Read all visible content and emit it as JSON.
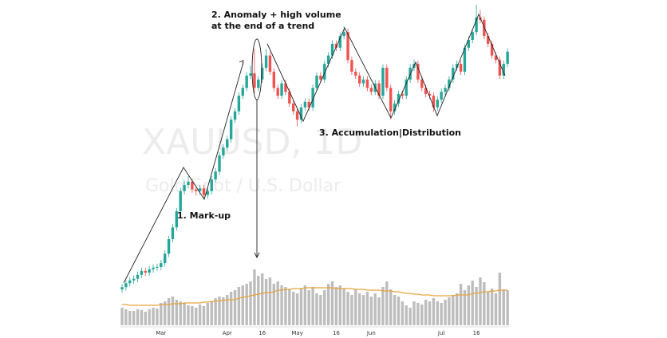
{
  "chart_data": {
    "type": "candlestick",
    "title": "XAUUSD, 1D",
    "subtitle": "Gold Spot / U.S. Dollar",
    "annotations": [
      "1. Mark-up",
      [
        "2. Anomaly + high volume",
        "at the end of a trend"
      ],
      "3. Accumulation|Distribution"
    ],
    "categories": [
      null,
      null,
      null,
      null,
      null,
      null,
      null,
      null,
      null,
      null,
      "Mar",
      null,
      null,
      null,
      null,
      null,
      null,
      null,
      null,
      null,
      null,
      null,
      null,
      null,
      null,
      null,
      null,
      "Apr",
      null,
      null,
      null,
      null,
      null,
      null,
      null,
      null,
      "16",
      null,
      null,
      null,
      null,
      null,
      null,
      null,
      null,
      "May",
      null,
      null,
      null,
      null,
      null,
      null,
      null,
      null,
      null,
      "16",
      null,
      null,
      null,
      null,
      null,
      null,
      null,
      null,
      "Jun",
      null,
      null,
      null,
      null,
      null,
      null,
      null,
      null,
      null,
      null,
      null,
      null,
      null,
      null,
      null,
      null,
      null,
      "Jul",
      null,
      null,
      null,
      null,
      null,
      null,
      null,
      null,
      "16",
      null,
      null,
      null,
      null,
      null,
      null,
      null,
      null
    ],
    "open": [
      2000,
      2004,
      2011,
      2016,
      2019,
      2026,
      2033,
      2030,
      2036,
      2039,
      2040,
      2047,
      2064,
      2090,
      2111,
      2140,
      2176,
      2187,
      2193,
      2179,
      2176,
      2181,
      2169,
      2176,
      2197,
      2211,
      2240,
      2254,
      2269,
      2304,
      2319,
      2347,
      2361,
      2383,
      2387,
      2361,
      2376,
      2397,
      2419,
      2390,
      2361,
      2347,
      2369,
      2354,
      2333,
      2319,
      2304,
      2326,
      2336,
      2326,
      2361,
      2383,
      2376,
      2404,
      2419,
      2440,
      2433,
      2454,
      2461,
      2411,
      2390,
      2383,
      2369,
      2376,
      2361,
      2354,
      2369,
      2347,
      2397,
      2361,
      2319,
      2333,
      2350,
      2347,
      2376,
      2397,
      2404,
      2376,
      2361,
      2350,
      2347,
      2326,
      2340,
      2354,
      2361,
      2376,
      2397,
      2404,
      2390,
      2433,
      2447,
      2461,
      2487,
      2483,
      2454,
      2440,
      2419,
      2411,
      2383,
      2404
    ],
    "high": [
      2010,
      2017,
      2022,
      2025,
      2032,
      2039,
      2039,
      2042,
      2045,
      2046,
      2053,
      2070,
      2096,
      2117,
      2146,
      2182,
      2195,
      2203,
      2199,
      2185,
      2187,
      2187,
      2182,
      2203,
      2217,
      2246,
      2260,
      2275,
      2310,
      2325,
      2353,
      2367,
      2389,
      2400,
      2431,
      2382,
      2405,
      2431,
      2425,
      2396,
      2367,
      2375,
      2375,
      2360,
      2339,
      2325,
      2332,
      2342,
      2342,
      2367,
      2389,
      2389,
      2410,
      2425,
      2446,
      2446,
      2460,
      2471,
      2467,
      2417,
      2396,
      2389,
      2382,
      2382,
      2367,
      2375,
      2375,
      2403,
      2403,
      2367,
      2339,
      2356,
      2356,
      2382,
      2403,
      2412,
      2410,
      2382,
      2367,
      2356,
      2353,
      2346,
      2360,
      2367,
      2382,
      2403,
      2410,
      2410,
      2439,
      2453,
      2467,
      2510,
      2500,
      2489,
      2460,
      2446,
      2425,
      2417,
      2410,
      2432
    ],
    "low": [
      1994,
      1998,
      2005,
      2010,
      2013,
      2020,
      2024,
      2024,
      2030,
      2033,
      2034,
      2041,
      2058,
      2084,
      2105,
      2134,
      2170,
      2181,
      2173,
      2168,
      2170,
      2163,
      2163,
      2170,
      2191,
      2205,
      2234,
      2248,
      2263,
      2298,
      2313,
      2341,
      2355,
      2377,
      2352,
      2355,
      2370,
      2391,
      2384,
      2355,
      2341,
      2341,
      2348,
      2327,
      2313,
      2292,
      2298,
      2320,
      2320,
      2320,
      2355,
      2370,
      2370,
      2398,
      2413,
      2427,
      2427,
      2448,
      2405,
      2384,
      2377,
      2363,
      2363,
      2355,
      2348,
      2348,
      2341,
      2341,
      2355,
      2305,
      2313,
      2327,
      2341,
      2341,
      2370,
      2391,
      2370,
      2355,
      2344,
      2341,
      2318,
      2320,
      2334,
      2348,
      2355,
      2370,
      2391,
      2384,
      2384,
      2427,
      2441,
      2455,
      2477,
      2448,
      2434,
      2413,
      2405,
      2377,
      2377,
      2398
    ],
    "close": [
      2004,
      2011,
      2016,
      2019,
      2026,
      2033,
      2030,
      2036,
      2039,
      2040,
      2047,
      2064,
      2090,
      2111,
      2140,
      2176,
      2187,
      2193,
      2179,
      2176,
      2181,
      2169,
      2176,
      2197,
      2211,
      2240,
      2254,
      2269,
      2304,
      2319,
      2347,
      2361,
      2383,
      2387,
      2361,
      2376,
      2397,
      2419,
      2390,
      2361,
      2347,
      2369,
      2354,
      2333,
      2319,
      2304,
      2326,
      2336,
      2326,
      2361,
      2383,
      2376,
      2404,
      2419,
      2440,
      2433,
      2454,
      2461,
      2411,
      2390,
      2383,
      2369,
      2376,
      2361,
      2354,
      2369,
      2347,
      2397,
      2361,
      2319,
      2333,
      2350,
      2347,
      2376,
      2397,
      2404,
      2376,
      2361,
      2350,
      2347,
      2326,
      2340,
      2354,
      2361,
      2376,
      2397,
      2404,
      2390,
      2433,
      2447,
      2461,
      2487,
      2483,
      2454,
      2440,
      2419,
      2411,
      2383,
      2404,
      2426
    ],
    "up_color": "#26a69a",
    "down_color": "#ef5350",
    "ylim": [
      1990,
      2517
    ],
    "volume": {
      "color": "#bdbdbd",
      "ylim": [
        0,
        80
      ],
      "values": [
        22,
        20,
        18,
        18,
        20,
        19,
        17,
        20,
        22,
        21,
        28,
        30,
        34,
        36,
        32,
        30,
        28,
        25,
        24,
        22,
        26,
        24,
        28,
        30,
        34,
        36,
        35,
        38,
        42,
        44,
        48,
        50,
        52,
        55,
        70,
        62,
        65,
        58,
        60,
        52,
        55,
        50,
        48,
        45,
        42,
        40,
        46,
        50,
        44,
        48,
        40,
        38,
        44,
        52,
        55,
        48,
        50,
        46,
        42,
        38,
        45,
        40,
        38,
        42,
        36,
        40,
        35,
        48,
        55,
        45,
        38,
        36,
        30,
        25,
        22,
        30,
        28,
        26,
        32,
        30,
        34,
        30,
        28,
        32,
        35,
        38,
        40,
        52,
        44,
        50,
        56,
        48,
        60,
        54,
        42,
        46,
        40,
        66,
        45,
        44
      ],
      "ma": {
        "color": "#e8a33a",
        "values": [
          26,
          26,
          25,
          25,
          25,
          25,
          25,
          25,
          25,
          25,
          26,
          26,
          26,
          27,
          27,
          27,
          28,
          28,
          28,
          28,
          28,
          29,
          29,
          30,
          30,
          31,
          31,
          32,
          32,
          32,
          34,
          35,
          36,
          37,
          38,
          39,
          40,
          41,
          41,
          42,
          44,
          44,
          45,
          45,
          46,
          46,
          46,
          47,
          47,
          47,
          47,
          47,
          47,
          47,
          47,
          46,
          46,
          46,
          46,
          46,
          45,
          45,
          45,
          44,
          44,
          44,
          44,
          43,
          43,
          43,
          42,
          42,
          41,
          40,
          40,
          39,
          39,
          38,
          38,
          38,
          37,
          37,
          37,
          37,
          37,
          37,
          38,
          38,
          38,
          38,
          40,
          40,
          41,
          42,
          42,
          43,
          43,
          44,
          44,
          44
        ]
      }
    }
  }
}
